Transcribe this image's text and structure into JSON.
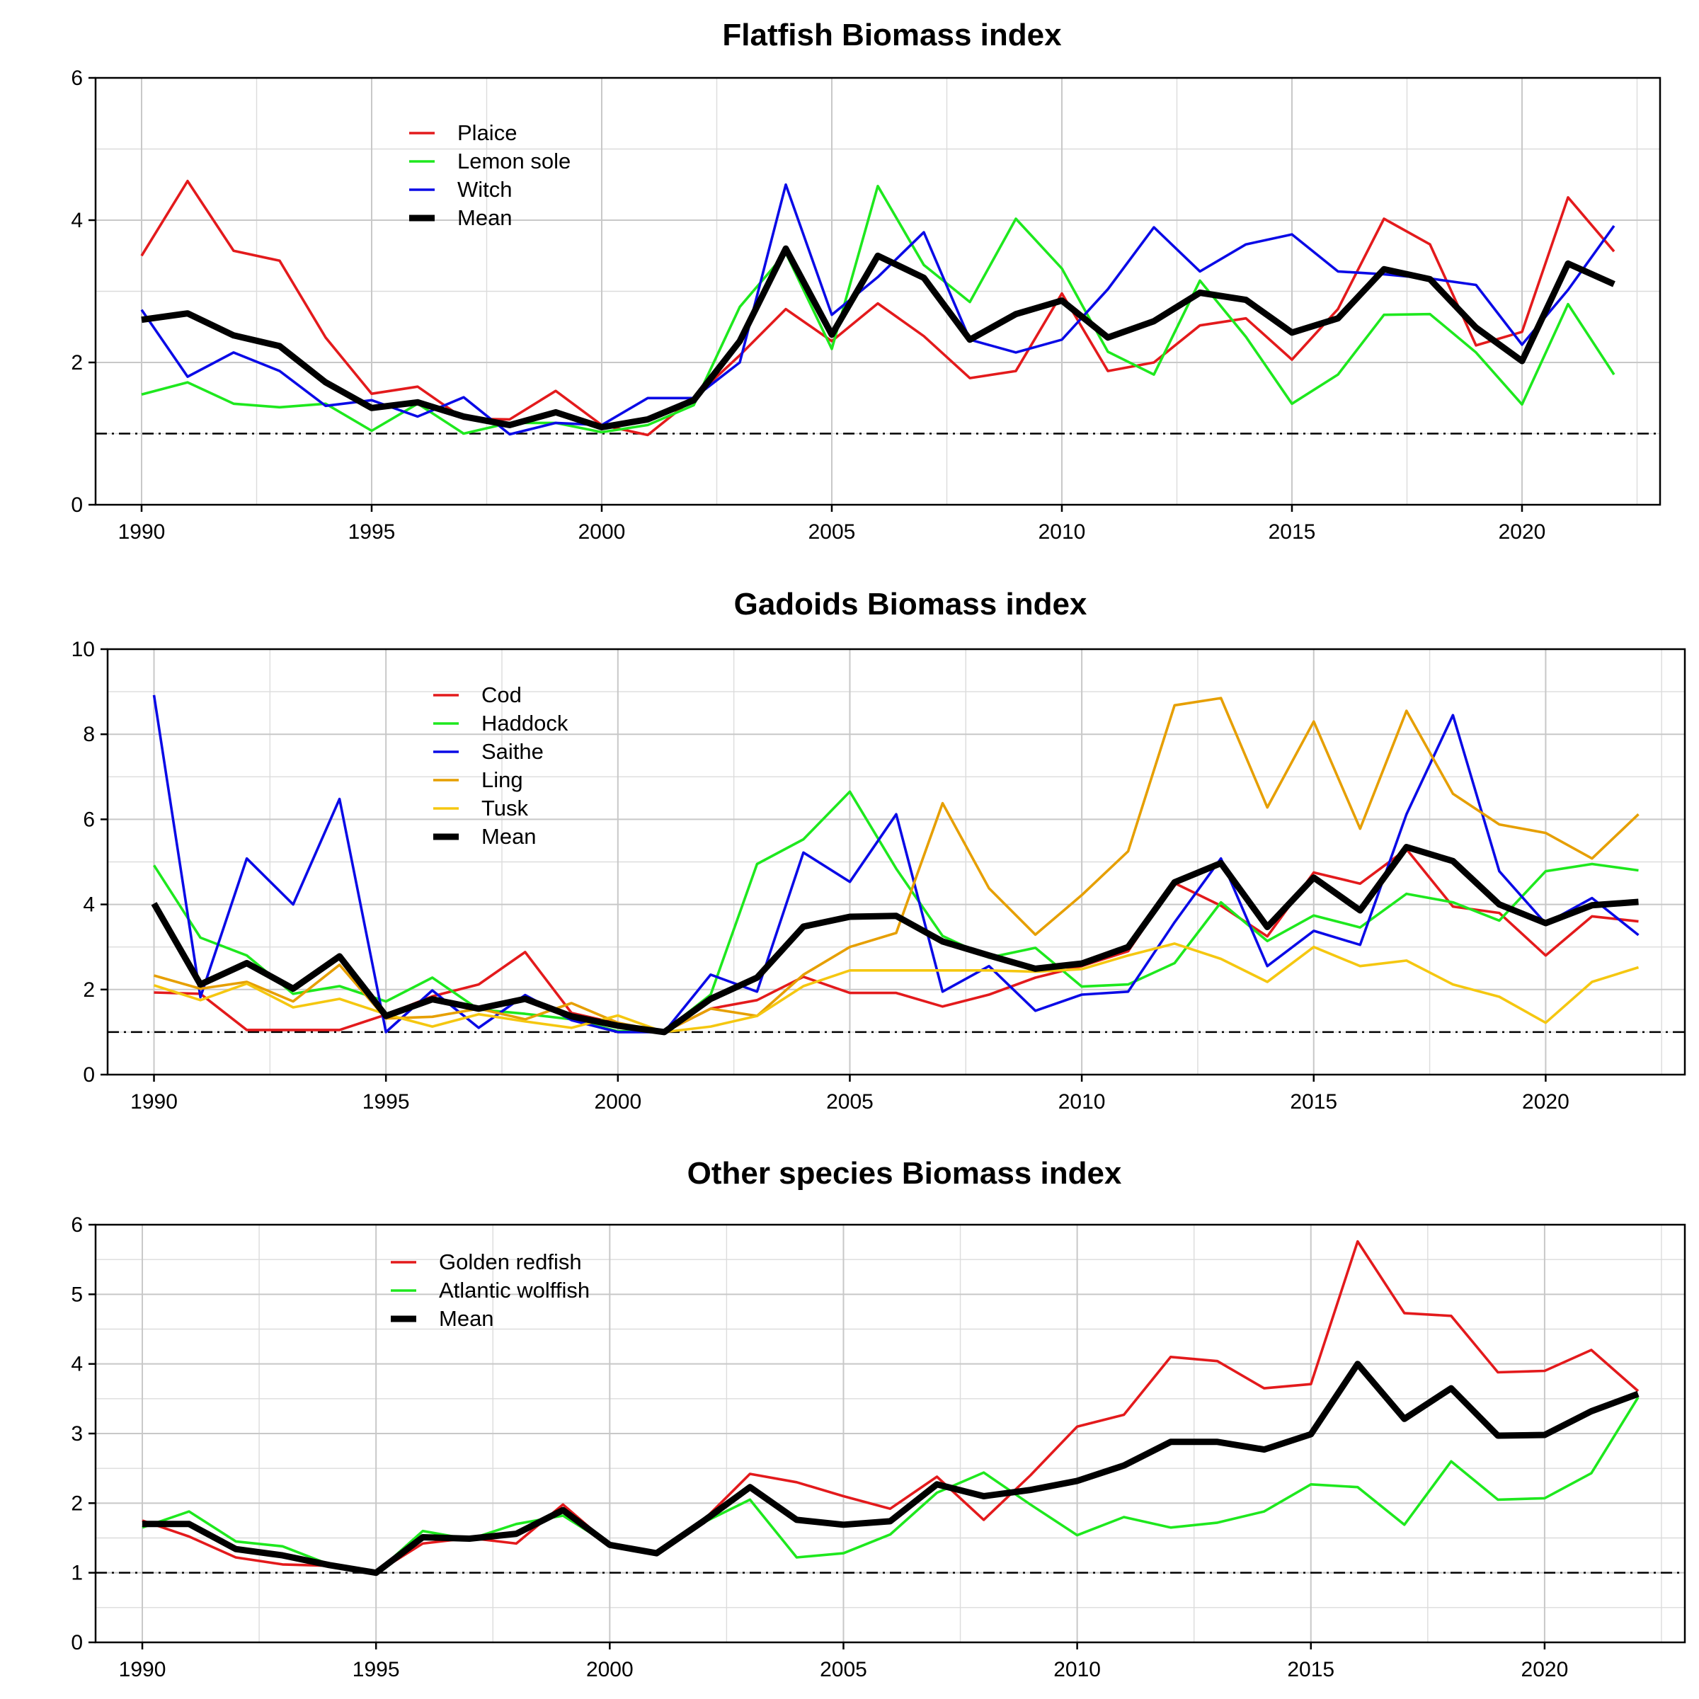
{
  "chart_data": [
    {
      "type": "line",
      "title": "Flatfish Biomass index",
      "xlabel": "",
      "ylabel": "",
      "xlim": [
        1989,
        2023
      ],
      "ylim": [
        0,
        6
      ],
      "xticks": [
        1990,
        1995,
        2000,
        2005,
        2010,
        2015,
        2020
      ],
      "yticks": [
        0,
        2,
        4,
        6
      ],
      "reference_line": 1,
      "grid": true,
      "legend_position": "top-left",
      "x": [
        1990,
        1991,
        1992,
        1993,
        1994,
        1995,
        1996,
        1997,
        1998,
        1999,
        2000,
        2001,
        2002,
        2003,
        2004,
        2005,
        2006,
        2007,
        2008,
        2009,
        2010,
        2011,
        2012,
        2013,
        2014,
        2015,
        2016,
        2017,
        2018,
        2019,
        2020,
        2021,
        2022
      ],
      "series": [
        {
          "name": "Plaice",
          "color": "#e31a1c",
          "width": "normal",
          "values": [
            3.5,
            4.55,
            3.57,
            3.43,
            2.35,
            1.56,
            1.66,
            1.21,
            1.2,
            1.6,
            1.12,
            0.98,
            1.5,
            2.1,
            2.75,
            2.3,
            2.83,
            2.37,
            1.78,
            1.88,
            2.97,
            1.88,
            2.0,
            2.52,
            2.62,
            2.04,
            2.75,
            4.02,
            3.66,
            2.24,
            2.43,
            4.32,
            3.56
          ]
        },
        {
          "name": "Lemon sole",
          "color": "#1ee81e",
          "width": "normal",
          "values": [
            1.55,
            1.72,
            1.42,
            1.37,
            1.42,
            1.04,
            1.42,
            1.0,
            1.15,
            1.15,
            1.02,
            1.12,
            1.4,
            2.78,
            3.54,
            2.19,
            4.48,
            3.37,
            2.85,
            4.02,
            3.32,
            2.15,
            1.83,
            3.15,
            2.36,
            1.42,
            1.83,
            2.67,
            2.68,
            2.14,
            1.41,
            2.82,
            1.83
          ]
        },
        {
          "name": "Witch",
          "color": "#0a0ae6",
          "width": "normal",
          "values": [
            2.74,
            1.8,
            2.14,
            1.88,
            1.39,
            1.47,
            1.24,
            1.51,
            0.99,
            1.15,
            1.12,
            1.5,
            1.5,
            2.0,
            4.5,
            2.67,
            3.2,
            3.83,
            2.32,
            2.14,
            2.32,
            3.03,
            3.9,
            3.28,
            3.66,
            3.8,
            3.28,
            3.24,
            3.18,
            3.09,
            2.25,
            3.02,
            3.92
          ]
        },
        {
          "name": "Mean",
          "color": "#000000",
          "width": "bold",
          "values": [
            2.6,
            2.69,
            2.38,
            2.23,
            1.72,
            1.36,
            1.44,
            1.24,
            1.12,
            1.3,
            1.09,
            1.2,
            1.47,
            2.3,
            3.6,
            2.39,
            3.5,
            3.19,
            2.32,
            2.68,
            2.87,
            2.35,
            2.58,
            2.98,
            2.88,
            2.42,
            2.62,
            3.31,
            3.17,
            2.49,
            2.02,
            3.39,
            3.1
          ]
        }
      ]
    },
    {
      "type": "line",
      "title": "Gadoids Biomass index",
      "xlabel": "",
      "ylabel": "",
      "xlim": [
        1989,
        2023
      ],
      "ylim": [
        0,
        10
      ],
      "xticks": [
        1990,
        1995,
        2000,
        2005,
        2010,
        2015,
        2020
      ],
      "yticks": [
        0,
        2,
        4,
        6,
        8,
        10
      ],
      "reference_line": 1,
      "grid": true,
      "legend_position": "top-left",
      "x": [
        1990,
        1991,
        1992,
        1993,
        1994,
        1995,
        1996,
        1997,
        1998,
        1999,
        2000,
        2001,
        2002,
        2003,
        2004,
        2005,
        2006,
        2007,
        2008,
        2009,
        2010,
        2011,
        2012,
        2013,
        2014,
        2015,
        2016,
        2017,
        2018,
        2019,
        2020,
        2021,
        2022
      ],
      "series": [
        {
          "name": "Cod",
          "color": "#e31a1c",
          "width": "normal",
          "values": [
            1.93,
            1.9,
            1.05,
            1.05,
            1.05,
            1.41,
            1.84,
            2.12,
            2.88,
            1.45,
            1.2,
            1.0,
            1.55,
            1.75,
            2.3,
            1.92,
            1.92,
            1.6,
            1.88,
            2.28,
            2.55,
            2.9,
            4.5,
            3.97,
            3.25,
            4.75,
            4.49,
            5.3,
            3.95,
            3.8,
            2.8,
            3.72,
            3.6
          ]
        },
        {
          "name": "Haddock",
          "color": "#1ee81e",
          "width": "normal",
          "values": [
            4.92,
            3.22,
            2.8,
            1.9,
            2.08,
            1.72,
            2.28,
            1.53,
            1.43,
            1.3,
            1.02,
            1.02,
            1.88,
            4.95,
            5.53,
            6.65,
            4.84,
            3.26,
            2.75,
            2.98,
            2.07,
            2.12,
            2.62,
            4.05,
            3.14,
            3.74,
            3.46,
            4.25,
            4.05,
            3.62,
            4.78,
            4.95,
            4.8
          ]
        },
        {
          "name": "Saithe",
          "color": "#0a0ae6",
          "width": "normal",
          "values": [
            8.92,
            1.82,
            5.08,
            4.0,
            6.48,
            1.0,
            1.98,
            1.1,
            1.87,
            1.28,
            1.0,
            1.0,
            2.35,
            1.95,
            5.22,
            4.53,
            6.12,
            1.95,
            2.55,
            1.5,
            1.88,
            1.95,
            3.58,
            5.08,
            2.55,
            3.38,
            3.05,
            6.12,
            8.45,
            4.78,
            3.55,
            4.15,
            3.28
          ]
        },
        {
          "name": "Ling",
          "color": "#e69f00",
          "width": "normal",
          "values": [
            2.33,
            2.02,
            2.18,
            1.72,
            2.58,
            1.32,
            1.36,
            1.55,
            1.3,
            1.68,
            1.22,
            1.0,
            1.55,
            1.38,
            2.35,
            3.0,
            3.33,
            6.38,
            4.38,
            3.29,
            4.22,
            5.25,
            8.68,
            8.85,
            6.28,
            8.3,
            5.78,
            8.55,
            6.6,
            5.88,
            5.68,
            5.08,
            6.12
          ]
        },
        {
          "name": "Tusk",
          "color": "#f5c710",
          "width": "normal",
          "values": [
            2.1,
            1.75,
            2.14,
            1.58,
            1.78,
            1.42,
            1.13,
            1.42,
            1.25,
            1.1,
            1.39,
            1.0,
            1.13,
            1.38,
            2.08,
            2.45,
            2.45,
            2.45,
            2.45,
            2.42,
            2.48,
            2.8,
            3.08,
            2.72,
            2.18,
            3.0,
            2.55,
            2.68,
            2.12,
            1.83,
            1.22,
            2.18,
            2.52
          ]
        },
        {
          "name": "Mean",
          "color": "#000000",
          "width": "bold",
          "values": [
            4.02,
            2.12,
            2.62,
            2.02,
            2.78,
            1.38,
            1.77,
            1.55,
            1.78,
            1.37,
            1.15,
            1.0,
            1.78,
            2.28,
            3.48,
            3.71,
            3.73,
            3.13,
            2.8,
            2.49,
            2.61,
            3.0,
            4.52,
            4.97,
            3.47,
            4.63,
            3.86,
            5.35,
            5.02,
            4.0,
            3.56,
            3.98,
            4.06
          ]
        }
      ]
    },
    {
      "type": "line",
      "title": "Other species Biomass index",
      "xlabel": "",
      "ylabel": "",
      "xlim": [
        1989,
        2023
      ],
      "ylim": [
        0,
        6
      ],
      "xticks": [
        1990,
        1995,
        2000,
        2005,
        2010,
        2015,
        2020
      ],
      "yticks": [
        0,
        1,
        2,
        3,
        4,
        5,
        6
      ],
      "reference_line": 1,
      "grid": true,
      "legend_position": "top-left",
      "x": [
        1990,
        1991,
        1992,
        1993,
        1994,
        1995,
        1996,
        1997,
        1998,
        1999,
        2000,
        2001,
        2002,
        2003,
        2004,
        2005,
        2006,
        2007,
        2008,
        2009,
        2010,
        2011,
        2012,
        2013,
        2014,
        2015,
        2016,
        2017,
        2018,
        2019,
        2020,
        2021,
        2022
      ],
      "series": [
        {
          "name": "Golden redfish",
          "color": "#e31a1c",
          "width": "normal",
          "values": [
            1.75,
            1.52,
            1.22,
            1.12,
            1.1,
            1.0,
            1.42,
            1.5,
            1.42,
            1.98,
            1.4,
            1.28,
            1.75,
            2.42,
            2.3,
            2.1,
            1.92,
            2.38,
            1.76,
            2.4,
            3.1,
            3.27,
            4.1,
            4.04,
            3.65,
            3.71,
            5.76,
            4.73,
            4.69,
            3.88,
            3.9,
            4.2,
            3.61
          ]
        },
        {
          "name": "Atlantic wolffish",
          "color": "#1ee81e",
          "width": "normal",
          "values": [
            1.65,
            1.88,
            1.45,
            1.38,
            1.12,
            1.0,
            1.6,
            1.48,
            1.7,
            1.82,
            1.4,
            1.28,
            1.72,
            2.05,
            1.22,
            1.28,
            1.55,
            2.15,
            2.44,
            1.98,
            1.54,
            1.8,
            1.65,
            1.72,
            1.88,
            2.27,
            2.23,
            1.69,
            2.6,
            2.05,
            2.07,
            2.43,
            3.52
          ]
        },
        {
          "name": "Mean",
          "color": "#000000",
          "width": "bold",
          "values": [
            1.7,
            1.7,
            1.34,
            1.25,
            1.11,
            1.0,
            1.51,
            1.49,
            1.56,
            1.9,
            1.4,
            1.28,
            1.74,
            2.23,
            1.76,
            1.69,
            1.74,
            2.27,
            2.1,
            2.19,
            2.32,
            2.54,
            2.88,
            2.88,
            2.77,
            2.99,
            4.0,
            3.21,
            3.65,
            2.97,
            2.98,
            3.32,
            3.57
          ]
        }
      ]
    }
  ]
}
